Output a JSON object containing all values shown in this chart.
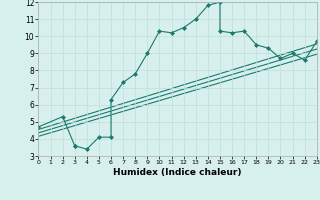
{
  "xlabel": "Humidex (Indice chaleur)",
  "xlim": [
    0,
    23
  ],
  "ylim": [
    3,
    12
  ],
  "xticks": [
    0,
    1,
    2,
    3,
    4,
    5,
    6,
    7,
    8,
    9,
    10,
    11,
    12,
    13,
    14,
    15,
    16,
    17,
    18,
    19,
    20,
    21,
    22,
    23
  ],
  "yticks": [
    3,
    4,
    5,
    6,
    7,
    8,
    9,
    10,
    11,
    12
  ],
  "bg_color": "#d7efed",
  "line_color": "#1a7a6e",
  "grid_color": "#c0deda",
  "series0_x": [
    0,
    2,
    3,
    3,
    4,
    5,
    6,
    6,
    7,
    8,
    9,
    10,
    11,
    12,
    13,
    14,
    15,
    15,
    16,
    17,
    18,
    19,
    20,
    21,
    22,
    23
  ],
  "series0_y": [
    4.7,
    5.3,
    3.6,
    3.6,
    3.4,
    4.1,
    4.1,
    6.3,
    7.3,
    7.8,
    9.0,
    10.3,
    10.2,
    10.5,
    11.0,
    11.8,
    12.0,
    10.3,
    10.2,
    10.3,
    9.5,
    9.3,
    8.7,
    9.0,
    8.6,
    9.7
  ],
  "line1_x": [
    0,
    23
  ],
  "line1_y": [
    4.55,
    9.55
  ],
  "line2_x": [
    0,
    23
  ],
  "line2_y": [
    4.35,
    9.25
  ],
  "line3_x": [
    0,
    23
  ],
  "line3_y": [
    4.15,
    8.95
  ]
}
